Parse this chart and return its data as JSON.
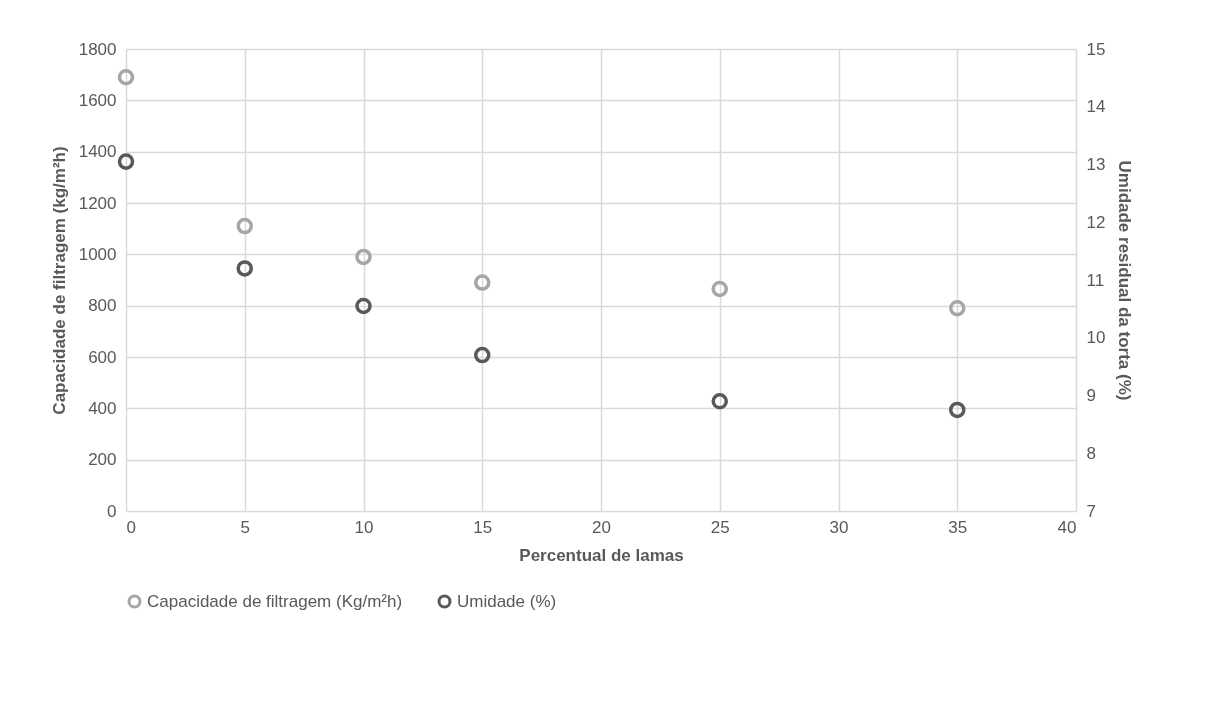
{
  "chart_data": {
    "type": "scatter",
    "xlabel": "Percentual de lamas",
    "ylabel": "Capacidade de filtragem (kg/m²h)",
    "y2label": "Umidade residual da torta (%)",
    "x": [
      0,
      5,
      10,
      15,
      25,
      35
    ],
    "series": [
      {
        "name": "Capacidade de filtragem (Kg/m²h)",
        "color": "#a6a6a6",
        "values": [
          1690,
          1110,
          990,
          890,
          865,
          790
        ]
      },
      {
        "name": "Umidade (%)",
        "color": "#595959",
        "axis": "y2",
        "values": [
          13.05,
          11.2,
          10.55,
          9.7,
          8.9,
          8.75
        ]
      }
    ],
    "xlim": [
      0,
      40
    ],
    "xticks": [
      0,
      5,
      10,
      15,
      20,
      25,
      30,
      35,
      40
    ],
    "ylim": [
      0,
      1800
    ],
    "yticks": [
      0,
      200,
      400,
      600,
      800,
      1000,
      1200,
      1400,
      1600,
      1800
    ],
    "y2lim": [
      7,
      15
    ],
    "y2ticks": [
      7,
      8,
      9,
      10,
      11,
      12,
      13,
      14,
      15
    ],
    "grid": true,
    "legend": "bottom",
    "marker": "circle"
  }
}
